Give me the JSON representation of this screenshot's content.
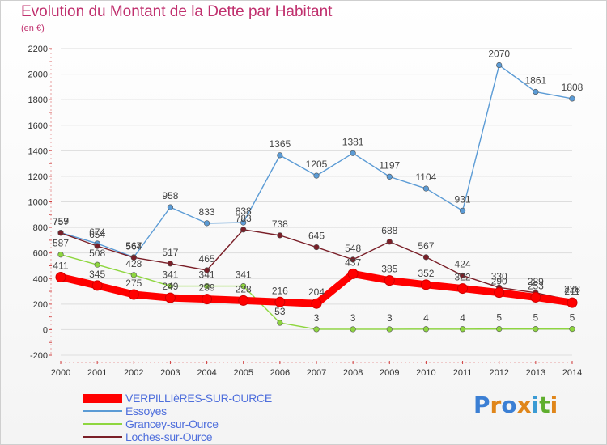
{
  "title": "Evolution du Montant de la Dette par Habitant",
  "subtitle": "(en €)",
  "logo_text": "Proxiti",
  "colors": {
    "title": "#c0306e",
    "axis_text": "#333333",
    "grid": "#dddddd",
    "legend_text": "#4f6fdc"
  },
  "chart_data": {
    "type": "line",
    "title": "Evolution du Montant de la Dette par Habitant",
    "subtitle": "(en €)",
    "x": [
      "2000",
      "2001",
      "2002",
      "2003",
      "2004",
      "2005",
      "2006",
      "2007",
      "2008",
      "2009",
      "2010",
      "2011",
      "2012",
      "2013",
      "2014"
    ],
    "ylim": [
      -200,
      2200
    ],
    "yticks": [
      -200,
      0,
      200,
      400,
      600,
      800,
      1000,
      1200,
      1400,
      1600,
      1800,
      2000,
      2200
    ],
    "grid": true,
    "legend_position": "bottom-left",
    "series": [
      {
        "name": "Essoyes",
        "color": "#5b9bd5",
        "values": [
          759,
          674,
          567,
          958,
          833,
          838,
          1365,
          1205,
          1381,
          1197,
          1104,
          931,
          2070,
          1861,
          1808
        ]
      },
      {
        "name": "Grancey-sur-Ource",
        "color": "#8ed63f",
        "values": [
          587,
          508,
          428,
          341,
          341,
          341,
          53,
          3,
          3,
          3,
          4,
          4,
          5,
          5,
          5
        ]
      },
      {
        "name": "Loches-sur-Ource",
        "color": "#7a1f28",
        "values": [
          757,
          654,
          564,
          517,
          465,
          783,
          738,
          645,
          548,
          688,
          567,
          424,
          330,
          289,
          228
        ]
      },
      {
        "name": "VERPILLIèRES-SUR-OURCE",
        "color": "#ff0000",
        "values": [
          411,
          345,
          275,
          249,
          239,
          228,
          216,
          204,
          437,
          385,
          352,
          322,
          290,
          253,
          211
        ]
      }
    ],
    "legend_order": [
      "VERPILLIèRES-SUR-OURCE",
      "Essoyes",
      "Grancey-sur-Ource",
      "Loches-sur-Ource"
    ]
  }
}
